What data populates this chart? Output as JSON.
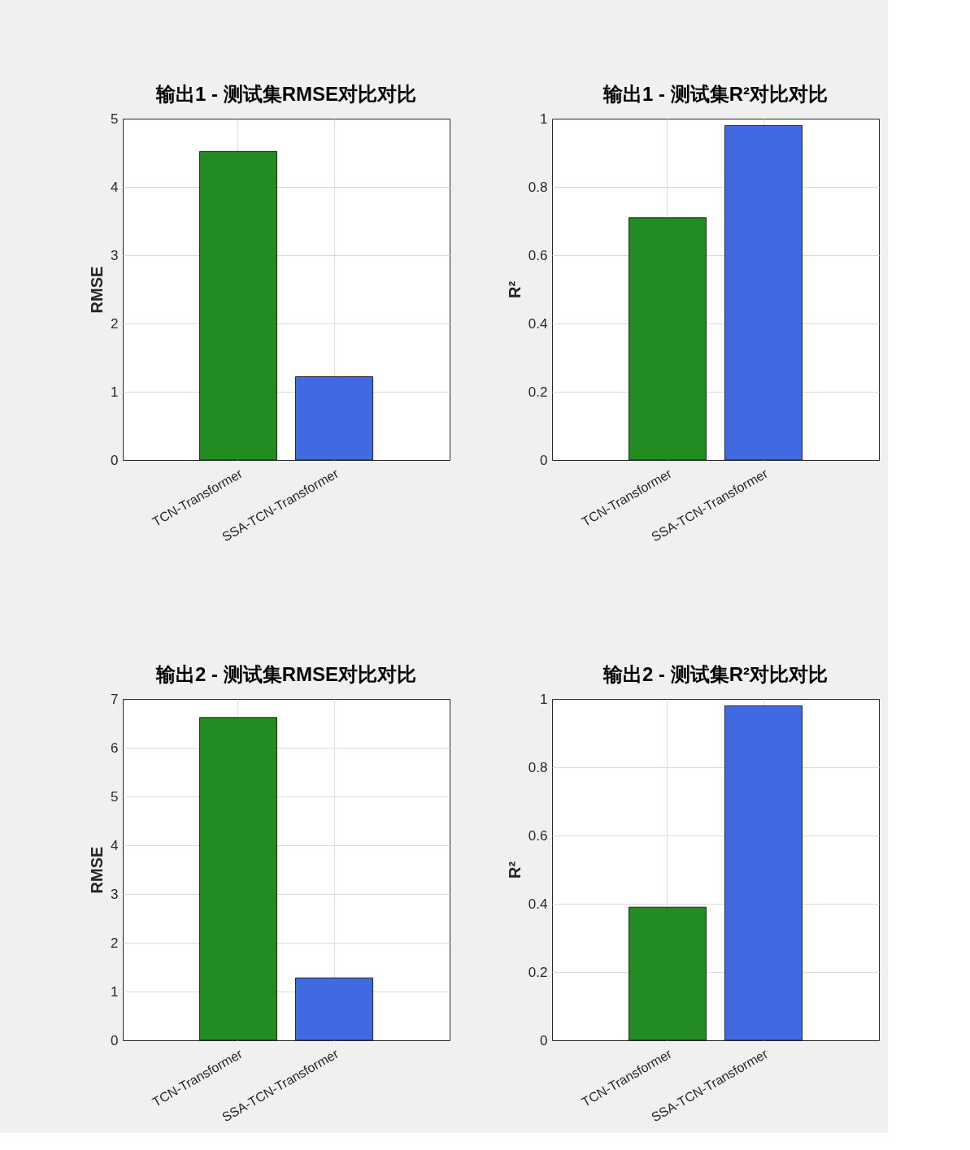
{
  "chart_data": [
    {
      "type": "bar",
      "title": "输出1 - 测试集RMSE对比对比",
      "ylabel": "RMSE",
      "categories": [
        "TCN-Transformer",
        "SSA-TCN-Transformer"
      ],
      "values": [
        4.52,
        1.22
      ],
      "colors": [
        "#228b22",
        "#4169e1"
      ],
      "ylim": [
        0,
        5
      ],
      "yticks": [
        0,
        1,
        2,
        3,
        4,
        5
      ],
      "grid": true
    },
    {
      "type": "bar",
      "title": "输出1 - 测试集R²对比对比",
      "ylabel": "R²",
      "categories": [
        "TCN-Transformer",
        "SSA-TCN-Transformer"
      ],
      "values": [
        0.71,
        0.98
      ],
      "colors": [
        "#228b22",
        "#4169e1"
      ],
      "ylim": [
        0,
        1
      ],
      "yticks": [
        0,
        0.2,
        0.4,
        0.6,
        0.8,
        1
      ],
      "grid": true
    },
    {
      "type": "bar",
      "title": "输出2 - 测试集RMSE对比对比",
      "ylabel": "RMSE",
      "categories": [
        "TCN-Transformer",
        "SSA-TCN-Transformer"
      ],
      "values": [
        6.62,
        1.28
      ],
      "colors": [
        "#228b22",
        "#4169e1"
      ],
      "ylim": [
        0,
        7
      ],
      "yticks": [
        0,
        1,
        2,
        3,
        4,
        5,
        6,
        7
      ],
      "grid": true
    },
    {
      "type": "bar",
      "title": "输出2 - 测试集R²对比对比",
      "ylabel": "R²",
      "categories": [
        "TCN-Transformer",
        "SSA-TCN-Transformer"
      ],
      "values": [
        0.39,
        0.98
      ],
      "colors": [
        "#228b22",
        "#4169e1"
      ],
      "ylim": [
        0,
        1
      ],
      "yticks": [
        0,
        0.2,
        0.4,
        0.6,
        0.8,
        1
      ],
      "grid": true
    }
  ]
}
